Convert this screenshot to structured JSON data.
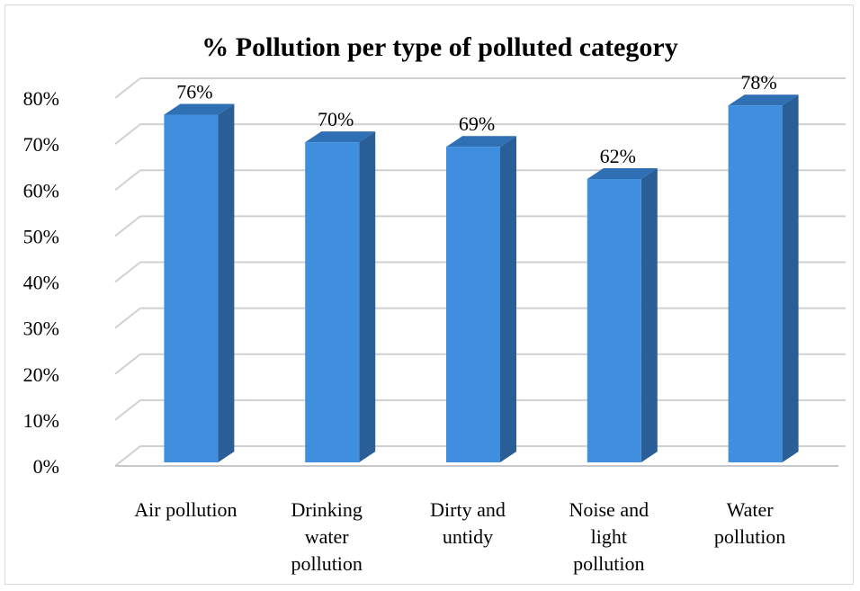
{
  "chart_data": {
    "type": "bar",
    "title": "% Pollution per type of polluted category",
    "categories": [
      [
        "Air pollution"
      ],
      [
        "Drinking",
        "water",
        "pollution"
      ],
      [
        "Dirty and",
        "untidy"
      ],
      [
        "Noise and",
        "light",
        "pollution"
      ],
      [
        "Water",
        "pollution"
      ]
    ],
    "values": [
      76,
      70,
      69,
      62,
      78
    ],
    "data_labels": [
      "76%",
      "70%",
      "69%",
      "62%",
      "78%"
    ],
    "y_ticks": [
      "0%",
      "10%",
      "20%",
      "30%",
      "40%",
      "50%",
      "60%",
      "70%",
      "80%"
    ],
    "ylim": [
      0,
      80
    ],
    "grid": true,
    "legend": "none",
    "colors": {
      "bar_front": "#3f8fde",
      "bar_side": "#2a5e96",
      "bar_top": "#2f6fb3",
      "grid": "#d0d0d0",
      "floor": "#c8c8c8"
    }
  }
}
